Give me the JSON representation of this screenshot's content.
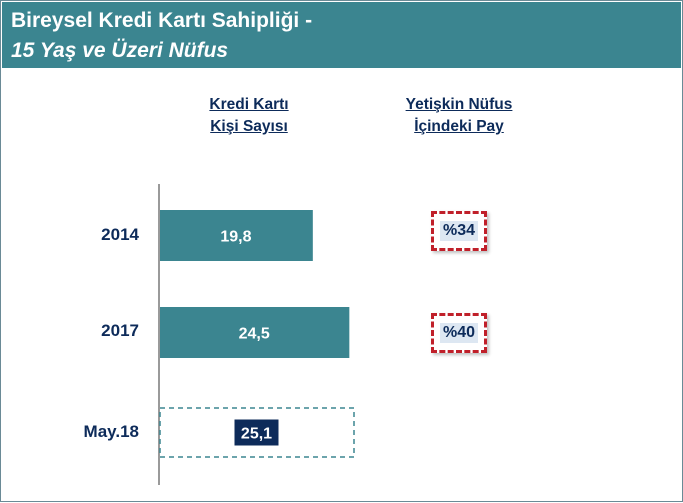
{
  "header": {
    "title_line1": "Bireysel Kredi Kartı Sahipliği  -",
    "title_line2": "15 Yaş ve Üzeri Nüfus"
  },
  "columns": {
    "left_line1": "Kredi Kartı",
    "left_line2": "Kişi Sayısı",
    "right_line1": "Yetişkin Nüfus",
    "right_line2": "İçindeki Pay"
  },
  "shares": [
    "%34",
    "%40"
  ],
  "chart_data": {
    "type": "bar",
    "orientation": "horizontal",
    "categories": [
      "2014",
      "2017",
      "May.18"
    ],
    "values": [
      19.8,
      24.5,
      25.1
    ],
    "value_labels": [
      "19,8",
      "24,5",
      "25,1"
    ],
    "colors": {
      "bar": "#3b8590",
      "highlight_label_bg": "#0d2b5a",
      "highlight_dash": "#3b8590"
    },
    "xlim": [
      0,
      25.1
    ]
  }
}
